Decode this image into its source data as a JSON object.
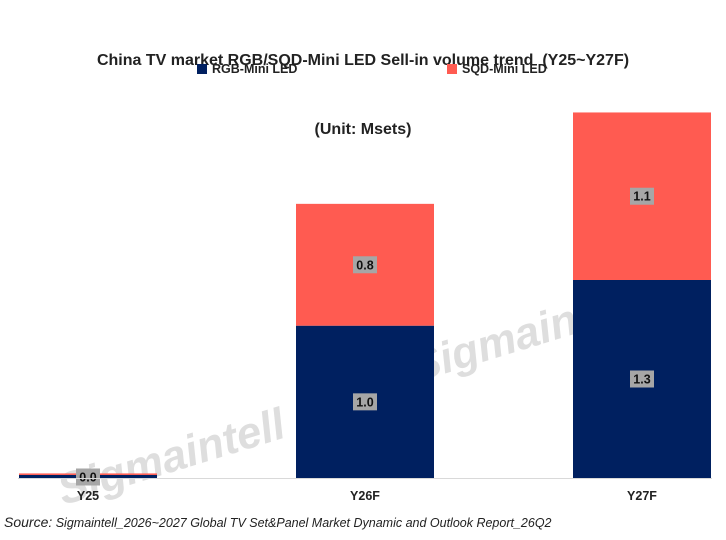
{
  "chart_data": {
    "type": "bar",
    "stacked": true,
    "title_lines": [
      "China TV market RGB/SQD-Mini LED Sell-in volume trend  (Y25~Y27F)",
      "(Unit: Msets)"
    ],
    "categories": [
      "Y25",
      "Y26F",
      "Y27F"
    ],
    "series": [
      {
        "name": "RGB-Mini LED",
        "color": "#002060",
        "values": [
          0.02,
          1.0,
          1.3
        ],
        "labels": [
          "0.0",
          "1.0",
          "1.3"
        ]
      },
      {
        "name": "SQD-Mini LED",
        "color": "#ff5b51",
        "values": [
          0.01,
          0.8,
          1.1
        ],
        "labels": [
          "",
          "0.8",
          "1.1"
        ]
      }
    ],
    "ylim": [
      0,
      2.6
    ],
    "legend_position": "top",
    "grid": false
  },
  "source": {
    "label": "Source:",
    "text": " Sigmaintell_2026~2027 Global TV Set&Panel Market Dynamic and Outlook Report_26Q2"
  },
  "watermark": "Sigmaintell"
}
